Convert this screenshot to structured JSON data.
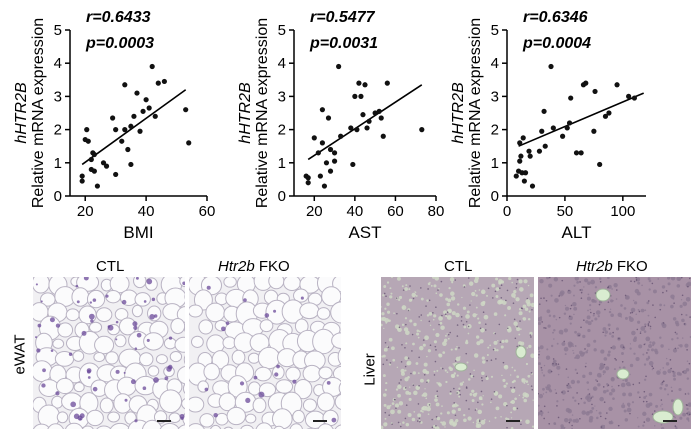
{
  "chart_data": [
    {
      "type": "scatter",
      "ylabel_gene": "hHTR2B",
      "ylabel_text": "Relative mRNA expression",
      "xlabel": "BMI",
      "r_text": "r=0.6433",
      "p_text": "p=0.0003",
      "xlim": [
        15,
        60
      ],
      "ylim": [
        0,
        5
      ],
      "xticks": [
        20,
        40,
        60
      ],
      "yticks": [
        0,
        1,
        2,
        3,
        4,
        5
      ],
      "fit": [
        [
          19,
          0.95
        ],
        [
          53,
          3.2
        ]
      ],
      "points": [
        [
          19,
          0.45
        ],
        [
          19,
          0.6
        ],
        [
          20,
          1.7
        ],
        [
          20.5,
          2.0
        ],
        [
          21,
          1.65
        ],
        [
          22,
          0.8
        ],
        [
          22,
          1.1
        ],
        [
          22.5,
          1.3
        ],
        [
          23,
          1.25
        ],
        [
          23,
          0.75
        ],
        [
          24,
          0.3
        ],
        [
          26,
          1.0
        ],
        [
          27,
          0.9
        ],
        [
          29,
          2.35
        ],
        [
          30,
          2.0
        ],
        [
          30,
          0.65
        ],
        [
          32,
          1.65
        ],
        [
          33,
          3.35
        ],
        [
          33,
          2.0
        ],
        [
          34,
          1.4
        ],
        [
          35,
          0.95
        ],
        [
          35,
          2.1
        ],
        [
          36,
          2.4
        ],
        [
          37,
          3.1
        ],
        [
          38,
          1.95
        ],
        [
          39,
          2.55
        ],
        [
          40,
          2.9
        ],
        [
          41,
          2.65
        ],
        [
          42,
          3.9
        ],
        [
          43,
          2.4
        ],
        [
          44,
          3.4
        ],
        [
          46,
          3.45
        ],
        [
          53,
          2.6
        ],
        [
          54,
          1.6
        ]
      ]
    },
    {
      "type": "scatter",
      "ylabel_gene": "hHTR2B",
      "ylabel_text": "Relative mRNA expression",
      "xlabel": "AST",
      "r_text": "r=0.5477",
      "p_text": "p=0.0031",
      "xlim": [
        10,
        80
      ],
      "ylim": [
        0,
        5
      ],
      "xticks": [
        20,
        40,
        60,
        80
      ],
      "yticks": [
        0,
        1,
        2,
        3,
        4,
        5
      ],
      "fit": [
        [
          17,
          1.1
        ],
        [
          73,
          3.35
        ]
      ],
      "points": [
        [
          16,
          0.6
        ],
        [
          17,
          0.55
        ],
        [
          17,
          0.4
        ],
        [
          20,
          1.75
        ],
        [
          22,
          1.3
        ],
        [
          23,
          0.6
        ],
        [
          24,
          2.6
        ],
        [
          24,
          1.6
        ],
        [
          25,
          0.3
        ],
        [
          26,
          1.0
        ],
        [
          27,
          2.35
        ],
        [
          28,
          1.4
        ],
        [
          28,
          0.75
        ],
        [
          30,
          1.3
        ],
        [
          30,
          1.05
        ],
        [
          32,
          3.9
        ],
        [
          33,
          1.8
        ],
        [
          38,
          2.05
        ],
        [
          39,
          0.95
        ],
        [
          40,
          3.0
        ],
        [
          41,
          2.0
        ],
        [
          42,
          3.4
        ],
        [
          43,
          3.0
        ],
        [
          44,
          2.45
        ],
        [
          45,
          3.35
        ],
        [
          46,
          2.05
        ],
        [
          47,
          2.25
        ],
        [
          50,
          2.5
        ],
        [
          52,
          2.55
        ],
        [
          53,
          2.35
        ],
        [
          54,
          1.8
        ],
        [
          56,
          3.4
        ],
        [
          73,
          2.0
        ]
      ]
    },
    {
      "type": "scatter",
      "ylabel_gene": "hHTR2B",
      "ylabel_text": "Relative mRNA expression",
      "xlabel": "ALT",
      "r_text": "r=0.6346",
      "p_text": "p=0.0004",
      "xlim": [
        0,
        120
      ],
      "ylim": [
        0,
        5
      ],
      "xticks": [
        0,
        50,
        100
      ],
      "yticks": [
        0,
        1,
        2,
        3,
        4,
        5
      ],
      "fit": [
        [
          10,
          1.5
        ],
        [
          118,
          3.1
        ]
      ],
      "points": [
        [
          8,
          0.6
        ],
        [
          10,
          0.75
        ],
        [
          11,
          1.05
        ],
        [
          11,
          1.6
        ],
        [
          12,
          1.2
        ],
        [
          13,
          0.7
        ],
        [
          14,
          1.75
        ],
        [
          15,
          0.45
        ],
        [
          16,
          0.7
        ],
        [
          19,
          1.35
        ],
        [
          20,
          1.2
        ],
        [
          22,
          0.3
        ],
        [
          28,
          1.35
        ],
        [
          30,
          1.95
        ],
        [
          32,
          2.55
        ],
        [
          33,
          1.5
        ],
        [
          38,
          3.9
        ],
        [
          40,
          2.05
        ],
        [
          48,
          1.8
        ],
        [
          52,
          2.05
        ],
        [
          54,
          2.2
        ],
        [
          55,
          2.95
        ],
        [
          60,
          1.3
        ],
        [
          64,
          1.3
        ],
        [
          66,
          3.35
        ],
        [
          68,
          3.4
        ],
        [
          75,
          1.95
        ],
        [
          76,
          3.15
        ],
        [
          80,
          0.95
        ],
        [
          85,
          2.4
        ],
        [
          88,
          2.5
        ],
        [
          95,
          3.35
        ],
        [
          105,
          3.0
        ],
        [
          110,
          2.95
        ]
      ]
    }
  ],
  "histology": {
    "left_group": {
      "side_label": "eWAT",
      "col_ctl": "CTL",
      "col_fko_gene": "Htr2b",
      "col_fko_suffix": " FKO"
    },
    "right_group": {
      "side_label": "Liver",
      "col_ctl": "CTL",
      "col_fko_gene": "Htr2b",
      "col_fko_suffix": " FKO"
    }
  }
}
